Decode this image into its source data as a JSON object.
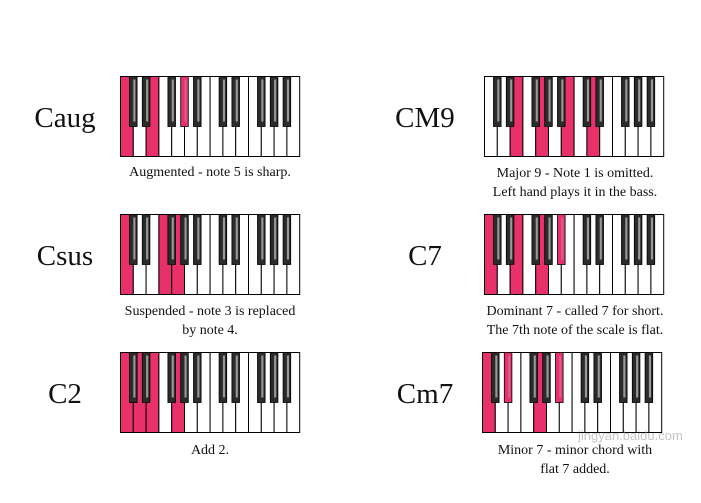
{
  "colors": {
    "highlight": "#e8306a",
    "black_key": "#2b2b2b",
    "white_key": "#ffffff",
    "outline": "#000000",
    "black_key_shine": "#bdbdbd"
  },
  "chords": [
    {
      "id": "caug",
      "name": "Caug",
      "caption_lines": [
        "Augmented - note 5 is sharp."
      ],
      "white_highlight": [
        0,
        2
      ],
      "black_highlight": [
        3
      ]
    },
    {
      "id": "csus",
      "name": "Csus",
      "caption_lines": [
        "Suspended - note 3 is replaced",
        "by note 4."
      ],
      "white_highlight": [
        0,
        3,
        4
      ],
      "black_highlight": []
    },
    {
      "id": "c2",
      "name": "C2",
      "caption_lines": [
        "Add 2."
      ],
      "white_highlight": [
        0,
        1,
        2,
        4
      ],
      "black_highlight": []
    },
    {
      "id": "cm9",
      "name": "CM9",
      "caption_lines": [
        "Major 9 - Note 1 is omitted.",
        "Left hand plays it in the bass."
      ],
      "white_highlight": [
        2,
        4,
        6,
        8
      ],
      "black_highlight": []
    },
    {
      "id": "c7",
      "name": "C7",
      "caption_lines": [
        "Dominant 7 - called 7 for short.",
        "The 7th note of the scale is flat."
      ],
      "white_highlight": [
        0,
        2,
        4
      ],
      "black_highlight": [
        4
      ]
    },
    {
      "id": "cm7",
      "name": "Cm7",
      "caption_lines": [
        "Minor 7 - minor chord with",
        "flat 7 added."
      ],
      "white_highlight": [
        0,
        4
      ],
      "black_highlight": [
        1,
        4
      ]
    }
  ],
  "watermark": "jingyan.baidu.com"
}
